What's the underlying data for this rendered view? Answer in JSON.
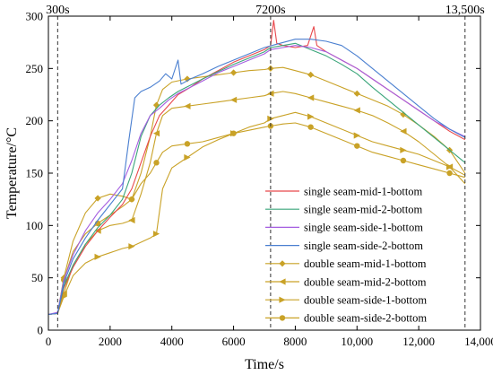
{
  "chart_data": {
    "type": "line",
    "xlabel": "Time/s",
    "ylabel": "Temperature/°C",
    "xlim": [
      0,
      14000
    ],
    "ylim": [
      0,
      300
    ],
    "xticks": [
      0,
      2000,
      4000,
      6000,
      8000,
      10000,
      12000,
      14000
    ],
    "xtick_labels": [
      "0",
      "2000",
      "4000",
      "6000",
      "8000",
      "10,000",
      "12,000",
      "14,000"
    ],
    "yticks": [
      0,
      50,
      100,
      150,
      200,
      250,
      300
    ],
    "ytick_labels": [
      "0",
      "50",
      "100",
      "150",
      "200",
      "250",
      "300"
    ],
    "grid": false,
    "legend_position": "bottom-right",
    "annotations": [
      {
        "label": "300s",
        "x": 300
      },
      {
        "label": "7200s",
        "x": 7200
      },
      {
        "label": "13,500s",
        "x": 13500
      }
    ],
    "series": [
      {
        "name": "single seam-mid-1-bottom",
        "color": "#e8474b",
        "marker": "none",
        "x": [
          0,
          300,
          500,
          800,
          1200,
          1600,
          2000,
          2400,
          2700,
          3000,
          3300,
          3600,
          3900,
          4200,
          4600,
          5000,
          5500,
          6000,
          6500,
          7000,
          7200,
          7300,
          7400,
          7600,
          8000,
          8400,
          8600,
          8700,
          9000,
          9500,
          10000,
          10500,
          11000,
          11500,
          12000,
          12500,
          13000,
          13500
        ],
        "y": [
          15,
          16,
          40,
          60,
          80,
          95,
          108,
          120,
          135,
          160,
          185,
          205,
          215,
          225,
          232,
          240,
          248,
          256,
          262,
          268,
          272,
          296,
          274,
          272,
          270,
          272,
          290,
          272,
          266,
          258,
          250,
          240,
          230,
          220,
          210,
          200,
          190,
          182
        ]
      },
      {
        "name": "single seam-mid-2-bottom",
        "color": "#3aa57a",
        "marker": "none",
        "x": [
          0,
          300,
          500,
          800,
          1200,
          1600,
          2000,
          2400,
          2700,
          3000,
          3300,
          3600,
          3900,
          4200,
          4600,
          5000,
          5500,
          6000,
          6500,
          7000,
          7200,
          7600,
          8000,
          8500,
          9000,
          9500,
          10000,
          10500,
          11000,
          11500,
          12000,
          12500,
          13000,
          13500
        ],
        "y": [
          15,
          16,
          42,
          62,
          82,
          98,
          110,
          125,
          150,
          185,
          205,
          215,
          222,
          228,
          234,
          240,
          247,
          254,
          260,
          266,
          270,
          272,
          274,
          268,
          262,
          254,
          245,
          232,
          220,
          208,
          196,
          184,
          172,
          160
        ]
      },
      {
        "name": "single seam-side-1-bottom",
        "color": "#a55ee0",
        "marker": "none",
        "x": [
          0,
          300,
          500,
          800,
          1200,
          1600,
          2000,
          2400,
          2700,
          3000,
          3300,
          3600,
          3900,
          4200,
          4600,
          5000,
          5500,
          6000,
          6500,
          7000,
          7200,
          7600,
          8000,
          8500,
          9000,
          9500,
          10000,
          10500,
          11000,
          11500,
          12000,
          12500,
          13000,
          13500
        ],
        "y": [
          15,
          17,
          48,
          72,
          95,
          112,
          125,
          140,
          162,
          188,
          205,
          212,
          220,
          226,
          232,
          238,
          246,
          252,
          258,
          264,
          268,
          270,
          272,
          270,
          266,
          258,
          250,
          240,
          230,
          220,
          210,
          200,
          192,
          185
        ]
      },
      {
        "name": "single seam-side-2-bottom",
        "color": "#4a7fd0",
        "marker": "none",
        "x": [
          0,
          300,
          500,
          800,
          1200,
          1600,
          2000,
          2400,
          2600,
          2800,
          3000,
          3300,
          3600,
          3800,
          4000,
          4200,
          4300,
          4600,
          5000,
          5500,
          6000,
          6500,
          7000,
          7500,
          8000,
          8500,
          9000,
          9500,
          10000,
          10500,
          11000,
          11500,
          12000,
          12500,
          13000,
          13500
        ],
        "y": [
          15,
          16,
          45,
          68,
          88,
          105,
          120,
          135,
          180,
          222,
          228,
          232,
          238,
          245,
          240,
          258,
          235,
          240,
          245,
          252,
          258,
          264,
          270,
          274,
          278,
          278,
          276,
          272,
          262,
          250,
          238,
          226,
          214,
          202,
          192,
          184
        ]
      },
      {
        "name": "double seam-mid-1-bottom",
        "color": "#c9a227",
        "marker": "diamond",
        "x": [
          0,
          300,
          500,
          800,
          1200,
          1600,
          2000,
          2400,
          2700,
          3000,
          3300,
          3500,
          3700,
          4000,
          4500,
          5000,
          5500,
          6000,
          6500,
          7000,
          7200,
          7600,
          8000,
          8500,
          9000,
          9500,
          10000,
          10500,
          11000,
          11500,
          12000,
          12500,
          13000,
          13500
        ],
        "y": [
          15,
          16,
          50,
          85,
          112,
          126,
          130,
          128,
          125,
          150,
          185,
          215,
          230,
          237,
          240,
          242,
          244,
          246,
          248,
          249,
          250,
          251,
          248,
          244,
          238,
          232,
          226,
          220,
          214,
          206,
          196,
          185,
          172,
          150
        ]
      },
      {
        "name": "double seam-mid-2-bottom",
        "color": "#c9a227",
        "marker": "tri-left",
        "x": [
          0,
          300,
          500,
          800,
          1200,
          1600,
          2000,
          2400,
          2700,
          3000,
          3300,
          3500,
          3700,
          4000,
          4500,
          5000,
          5500,
          6000,
          6500,
          7000,
          7200,
          7600,
          8000,
          8500,
          9000,
          9500,
          10000,
          10500,
          11000,
          11500,
          12000,
          12500,
          13000,
          13500
        ],
        "y": [
          15,
          16,
          35,
          62,
          82,
          95,
          100,
          102,
          105,
          130,
          160,
          188,
          205,
          212,
          214,
          216,
          218,
          220,
          222,
          224,
          226,
          228,
          226,
          222,
          218,
          214,
          210,
          205,
          198,
          190,
          180,
          168,
          156,
          140
        ]
      },
      {
        "name": "double seam-side-1-bottom",
        "color": "#c9a227",
        "marker": "tri-right",
        "x": [
          0,
          300,
          500,
          800,
          1200,
          1600,
          2000,
          2400,
          2700,
          3000,
          3300,
          3500,
          3700,
          4000,
          4500,
          5000,
          5500,
          6000,
          6500,
          7000,
          7200,
          7600,
          8000,
          8500,
          9000,
          9500,
          10000,
          10500,
          11000,
          11500,
          12000,
          12500,
          13000,
          13500
        ],
        "y": [
          15,
          16,
          32,
          52,
          64,
          70,
          74,
          78,
          80,
          84,
          88,
          92,
          135,
          155,
          165,
          175,
          182,
          188,
          194,
          198,
          202,
          205,
          208,
          204,
          198,
          192,
          186,
          180,
          176,
          172,
          168,
          162,
          156,
          148
        ]
      },
      {
        "name": "double seam-side-2-bottom",
        "color": "#c9a227",
        "marker": "circle",
        "x": [
          0,
          300,
          500,
          800,
          1200,
          1600,
          2000,
          2400,
          2700,
          3000,
          3300,
          3500,
          3700,
          4000,
          4500,
          5000,
          5500,
          6000,
          6500,
          7000,
          7200,
          7600,
          8000,
          8500,
          9000,
          9500,
          10000,
          10500,
          11000,
          11500,
          12000,
          12500,
          13000,
          13500
        ],
        "y": [
          15,
          16,
          48,
          75,
          92,
          102,
          110,
          118,
          125,
          140,
          150,
          160,
          170,
          176,
          178,
          180,
          184,
          188,
          191,
          194,
          195,
          197,
          198,
          194,
          188,
          182,
          176,
          170,
          166,
          162,
          158,
          154,
          150,
          146
        ]
      }
    ]
  }
}
